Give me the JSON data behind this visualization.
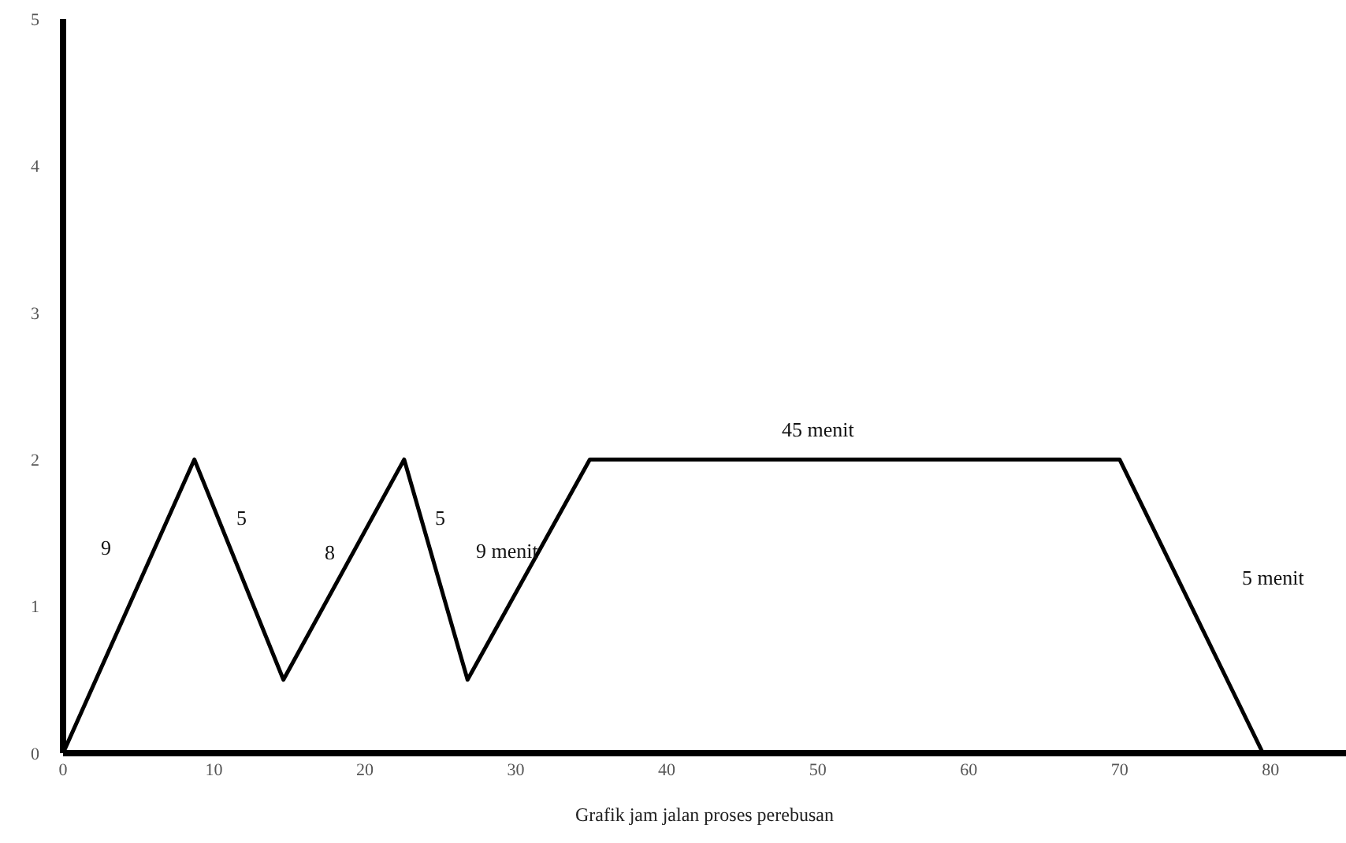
{
  "chart_data": {
    "type": "line",
    "xlabel": "Grafik jam jalan proses perebusan",
    "x": [
      0,
      8.7,
      14.6,
      22.6,
      26.8,
      34.9,
      70,
      79.5
    ],
    "series": [
      {
        "color": "#000000",
        "values": [
          0,
          2,
          0.5,
          2,
          0.5,
          2,
          2,
          0
        ]
      }
    ],
    "xlim": [
      0,
      85
    ],
    "xticks": [
      0,
      10,
      20,
      30,
      40,
      50,
      60,
      70,
      80
    ],
    "ylim": [
      0,
      5
    ],
    "yticks": [
      0,
      1,
      2,
      3,
      4,
      5
    ],
    "grid": false,
    "marker": "none",
    "line_style": "solid",
    "annotations": [
      "9",
      "5",
      "8",
      "5",
      "9 menit",
      "45 menit",
      "5 menit"
    ]
  }
}
